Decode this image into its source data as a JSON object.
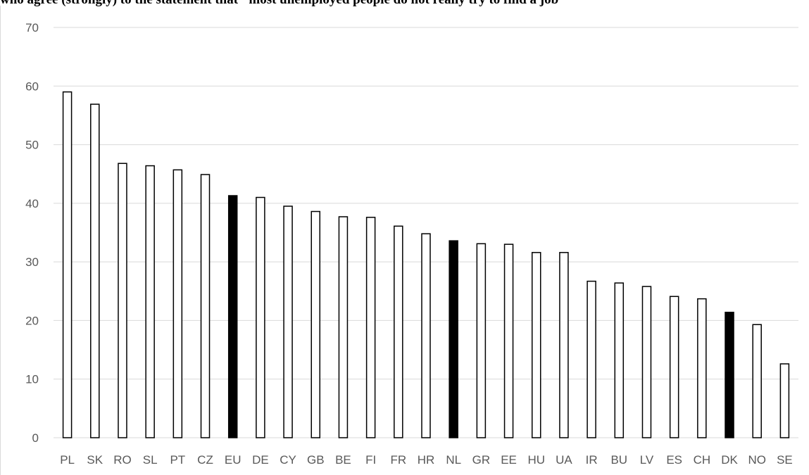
{
  "chart_data": {
    "type": "bar",
    "title": "who agree (strongly) to the statement that \"most unemployed people do not really try to find a job\"",
    "categories": [
      "PL",
      "SK",
      "RO",
      "SL",
      "PT",
      "CZ",
      "EU",
      "DE",
      "CY",
      "GB",
      "BE",
      "FI",
      "FR",
      "HR",
      "NL",
      "GR",
      "EE",
      "HU",
      "UA",
      "IR",
      "BU",
      "LV",
      "ES",
      "CH",
      "DK",
      "NO",
      "SE"
    ],
    "values": [
      59.0,
      56.9,
      46.8,
      46.4,
      45.7,
      44.9,
      41.3,
      41.0,
      39.5,
      38.6,
      37.7,
      37.6,
      36.1,
      34.8,
      33.6,
      33.1,
      33.0,
      31.6,
      31.6,
      26.7,
      26.4,
      25.8,
      24.1,
      23.7,
      21.4,
      19.3,
      12.6
    ],
    "highlighted": [
      "EU",
      "NL",
      "DK"
    ],
    "yticks": [
      "0",
      "10",
      "20",
      "30",
      "40",
      "50",
      "60",
      "70"
    ],
    "ylim": [
      0,
      70
    ],
    "xlabel": "",
    "ylabel": "",
    "grid": true,
    "colors": {
      "bar_fill": "#ffffff",
      "bar_highlight": "#000000",
      "bar_stroke": "#000000",
      "grid": "#d9d9d9",
      "tick_text": "#595959"
    }
  }
}
